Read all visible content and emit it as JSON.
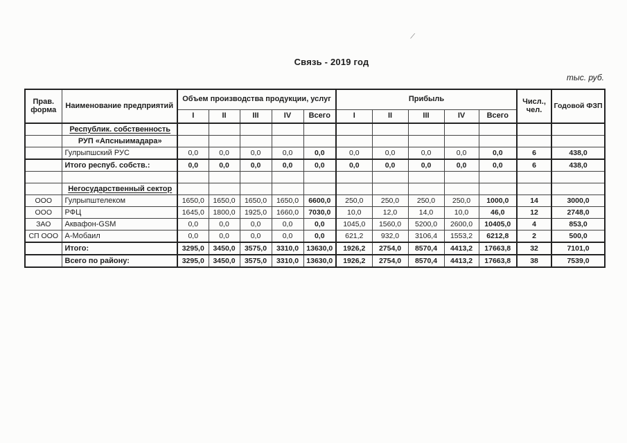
{
  "page": {
    "title": "Связь - 2019 год",
    "units_note": "тыс. руб.",
    "artifact_mark": "⁄"
  },
  "table": {
    "headers": {
      "legal_form": "Прав. форма",
      "name": "Наименование предприятий",
      "volume_group": "Объем производства продукции, услуг",
      "profit_group": "Прибыль",
      "quarters": [
        "I",
        "II",
        "III",
        "IV",
        "Всего"
      ],
      "headcount": "Числ., чел.",
      "annual_fund": "Годовой ФЗП"
    },
    "rows": [
      {
        "type": "section",
        "underline": true,
        "bold": false,
        "name": "Республик. собственность"
      },
      {
        "type": "section",
        "underline": false,
        "bold": false,
        "name": "РУП «Апсныимадара»"
      },
      {
        "type": "data",
        "bold": false,
        "legal": "",
        "name": "Гулрыпшский РУС",
        "vol": [
          "0,0",
          "0,0",
          "0,0",
          "0,0"
        ],
        "vol_total": "0,0",
        "profit": [
          "0,0",
          "0,0",
          "0,0",
          "0,0"
        ],
        "profit_total": "0,0",
        "headcount": "6",
        "fund": "438,0"
      },
      {
        "type": "data",
        "bold": true,
        "legal": "",
        "name": "Итого респуб. собств.:",
        "vol": [
          "0,0",
          "0,0",
          "0,0",
          "0,0"
        ],
        "vol_total": "0,0",
        "profit": [
          "0,0",
          "0,0",
          "0,0",
          "0,0"
        ],
        "profit_total": "0,0",
        "headcount": "6",
        "fund": "438,0"
      },
      {
        "type": "empty"
      },
      {
        "type": "section",
        "underline": true,
        "bold": false,
        "name": "Негосударственный сектор"
      },
      {
        "type": "data",
        "bold": false,
        "legal": "ООО",
        "name": "Гулрыпштелеком",
        "vol": [
          "1650,0",
          "1650,0",
          "1650,0",
          "1650,0"
        ],
        "vol_total": "6600,0",
        "profit": [
          "250,0",
          "250,0",
          "250,0",
          "250,0"
        ],
        "profit_total": "1000,0",
        "headcount": "14",
        "fund": "3000,0"
      },
      {
        "type": "data",
        "bold": false,
        "legal": "ООО",
        "name": "РФЦ",
        "vol": [
          "1645,0",
          "1800,0",
          "1925,0",
          "1660,0"
        ],
        "vol_total": "7030,0",
        "profit": [
          "10,0",
          "12,0",
          "14,0",
          "10,0"
        ],
        "profit_total": "46,0",
        "headcount": "12",
        "fund": "2748,0"
      },
      {
        "type": "data",
        "bold": false,
        "legal": "ЗАО",
        "name": "Аквафон-GSM",
        "vol": [
          "0,0",
          "0,0",
          "0,0",
          "0,0"
        ],
        "vol_total": "0,0",
        "profit": [
          "1045,0",
          "1560,0",
          "5200,0",
          "2600,0"
        ],
        "profit_total": "10405,0",
        "headcount": "4",
        "fund": "853,0"
      },
      {
        "type": "data",
        "bold": false,
        "legal": "СП ООО",
        "name": "А-Мобаил",
        "vol": [
          "0,0",
          "0,0",
          "0,0",
          "0,0"
        ],
        "vol_total": "0,0",
        "profit": [
          "621,2",
          "932,0",
          "3106,4",
          "1553,2"
        ],
        "profit_total": "6212,8",
        "headcount": "2",
        "fund": "500,0"
      },
      {
        "type": "data",
        "bold": true,
        "legal": "",
        "name": "Итого:",
        "vol": [
          "3295,0",
          "3450,0",
          "3575,0",
          "3310,0"
        ],
        "vol_total": "13630,0",
        "profit": [
          "1926,2",
          "2754,0",
          "8570,4",
          "4413,2"
        ],
        "profit_total": "17663,8",
        "headcount": "32",
        "fund": "7101,0"
      },
      {
        "type": "data",
        "bold": true,
        "legal": "",
        "name": "Всего по району:",
        "vol": [
          "3295,0",
          "3450,0",
          "3575,0",
          "3310,0"
        ],
        "vol_total": "13630,0",
        "profit": [
          "1926,2",
          "2754,0",
          "8570,4",
          "4413,2"
        ],
        "profit_total": "17663,8",
        "headcount": "38",
        "fund": "7539,0"
      }
    ]
  }
}
